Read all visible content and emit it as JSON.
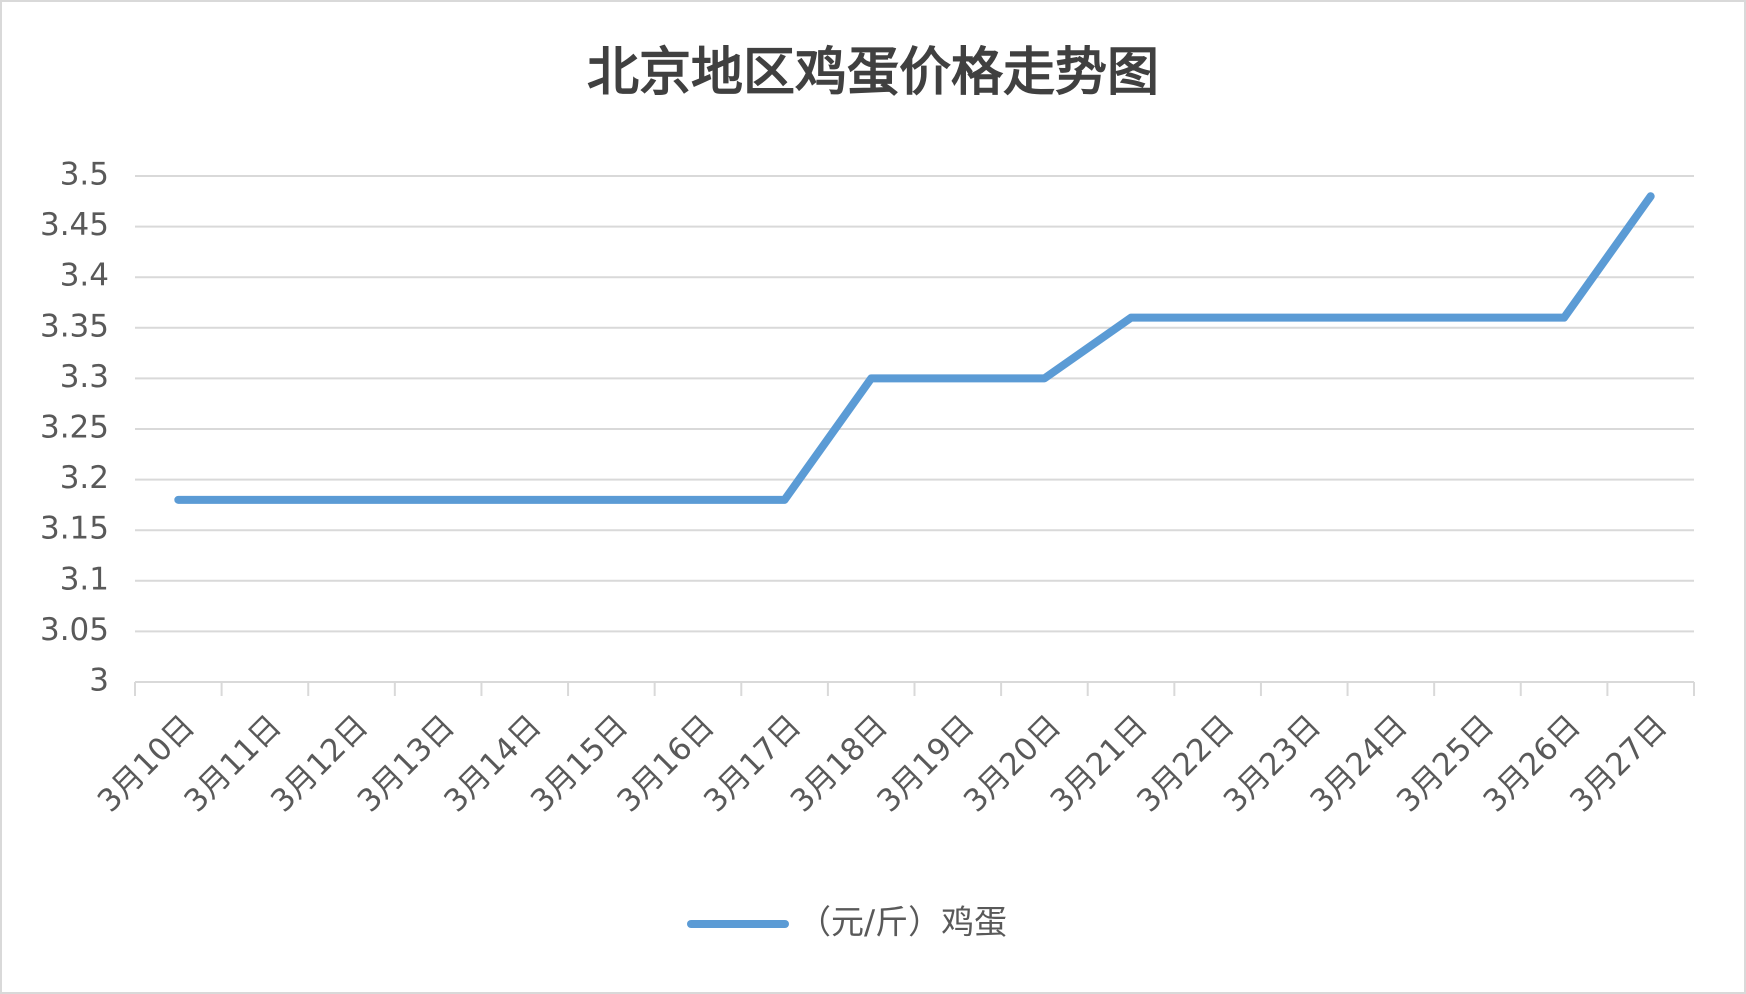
{
  "chart_data": {
    "type": "line",
    "title": "北京地区鸡蛋价格走势图",
    "categories": [
      "3月10日",
      "3月11日",
      "3月12日",
      "3月13日",
      "3月14日",
      "3月15日",
      "3月16日",
      "3月17日",
      "3月18日",
      "3月19日",
      "3月20日",
      "3月21日",
      "3月22日",
      "3月23日",
      "3月24日",
      "3月25日",
      "3月26日",
      "3月27日"
    ],
    "series": [
      {
        "name": "（元/斤）鸡蛋",
        "color": "#5b9bd5",
        "values": [
          3.18,
          3.18,
          3.18,
          3.18,
          3.18,
          3.18,
          3.18,
          3.18,
          3.3,
          3.3,
          3.3,
          3.36,
          3.36,
          3.36,
          3.36,
          3.36,
          3.36,
          3.48
        ]
      }
    ],
    "ylim": [
      3,
      3.5
    ],
    "yticks": [
      3,
      3.05,
      3.1,
      3.15,
      3.2,
      3.25,
      3.3,
      3.35,
      3.4,
      3.45,
      3.5
    ],
    "grid": true,
    "legend": "bottom"
  }
}
